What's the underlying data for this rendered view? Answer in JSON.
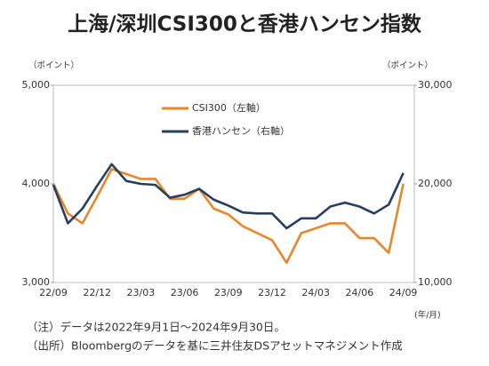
{
  "chart_data": {
    "type": "line",
    "title": "上海/深圳CSI300と香港ハンセン指数",
    "y_label": "（ポイント）",
    "y2_label": "（ポイント）",
    "x_label": "(年/月)",
    "notes": [
      "（注）データは2022年9月1日～2024年9月30日。",
      "（出所）Bloombergのデータを基に三井住友DSアセットマネジメント作成"
    ],
    "x": [
      "22/09",
      "22/10",
      "22/11",
      "22/12",
      "23/01",
      "23/02",
      "23/03",
      "23/04",
      "23/05",
      "23/06",
      "23/07",
      "23/08",
      "23/09",
      "23/10",
      "23/11",
      "23/12",
      "24/01",
      "24/02",
      "24/03",
      "24/04",
      "24/05",
      "24/06",
      "24/07",
      "24/08",
      "24/09"
    ],
    "xticks": [
      "22/09",
      "22/12",
      "23/03",
      "23/06",
      "23/09",
      "23/12",
      "24/03",
      "24/06",
      "24/09"
    ],
    "series": [
      {
        "name": "CSI300（左軸）",
        "color": "#e8862a",
        "axis": "y",
        "values": [
          4000,
          3700,
          3600,
          3870,
          4150,
          4100,
          4050,
          4050,
          3850,
          3850,
          3950,
          3750,
          3690,
          3570,
          3500,
          3430,
          3200,
          3500,
          3550,
          3600,
          3600,
          3450,
          3450,
          3300,
          4000
        ]
      },
      {
        "name": "香港ハンセン（右軸）",
        "color": "#243f60",
        "axis": "y2",
        "values": [
          19900,
          16000,
          17500,
          19800,
          22000,
          20300,
          20000,
          19900,
          18600,
          18900,
          19500,
          18400,
          17800,
          17100,
          17000,
          17000,
          15500,
          16500,
          16500,
          17700,
          18100,
          17700,
          17000,
          17900,
          21100
        ]
      }
    ],
    "ylim": [
      3000,
      5000
    ],
    "yticks": [
      {
        "value": 3000,
        "label": "3,000"
      },
      {
        "value": 4000,
        "label": "4,000"
      },
      {
        "value": 5000,
        "label": "5,000"
      }
    ],
    "y2lim": [
      10000,
      30000
    ],
    "y2ticks": [
      {
        "value": 10000,
        "label": "10,000"
      },
      {
        "value": 20000,
        "label": "20,000"
      },
      {
        "value": 30000,
        "label": "30,000"
      }
    ],
    "grid": false,
    "legend": "top-left"
  }
}
